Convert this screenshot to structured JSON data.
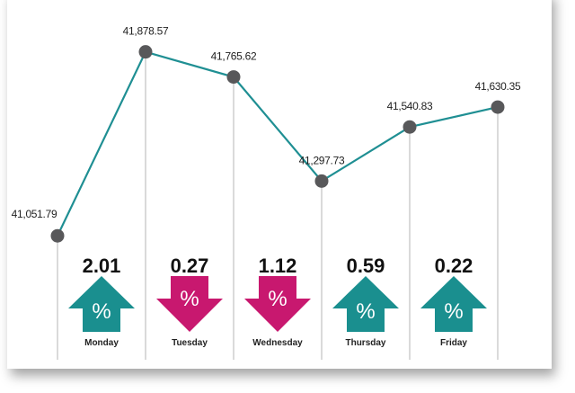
{
  "chart_data": {
    "type": "line",
    "title": "",
    "xlabel": "",
    "ylabel": "",
    "ylim": [
      41000,
      41950
    ],
    "grid": false,
    "points": [
      {
        "day": "",
        "value": 41051.79,
        "label": "41,051.79"
      },
      {
        "day": "Monday",
        "value": 41878.57,
        "label": "41,878.57"
      },
      {
        "day": "Tuesday",
        "value": 41765.62,
        "label": "41,765.62"
      },
      {
        "day": "Wednesday",
        "value": 41297.73,
        "label": "41,297.73"
      },
      {
        "day": "Thursday",
        "value": 41540.83,
        "label": "41,540.83"
      },
      {
        "day": "Friday",
        "value": 41630.35,
        "label": "41,630.35"
      }
    ],
    "daily_change": [
      {
        "day": "Monday",
        "percent": "2.01",
        "direction": "up"
      },
      {
        "day": "Tuesday",
        "percent": "0.27",
        "direction": "down"
      },
      {
        "day": "Wednesday",
        "percent": "1.12",
        "direction": "down"
      },
      {
        "day": "Thursday",
        "percent": "0.59",
        "direction": "up"
      },
      {
        "day": "Friday",
        "percent": "0.22",
        "direction": "up"
      }
    ],
    "percent_symbol": "%"
  },
  "colors": {
    "line": "#1f8f93",
    "marker": "#58585a",
    "up": "#1a8f8f",
    "down": "#c8186f",
    "gridline": "#b5b5b5"
  }
}
